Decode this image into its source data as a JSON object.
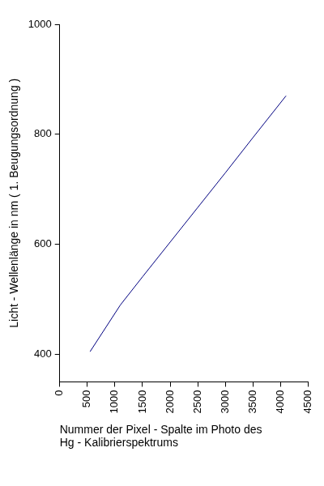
{
  "chart_data": {
    "type": "line",
    "x_label": [
      "Nummer der Pixel - Spalte im Photo des",
      "Hg - Kalibrierspektrums"
    ],
    "y_label": "Licht - Wellenlänge in nm ( 1. Beugungsordnung )",
    "x": [
      550,
      1100,
      1500,
      2000,
      2500,
      3000,
      3500,
      4100
    ],
    "values": [
      405,
      490,
      541,
      604,
      667,
      730,
      794,
      870
    ],
    "color": "#000080",
    "xlim": [
      0,
      4500
    ],
    "xticks": [
      0,
      500,
      1000,
      1500,
      2000,
      2500,
      3000,
      3500,
      4000,
      4500
    ],
    "ylim": [
      350,
      1000
    ],
    "yticks": [
      400,
      600,
      800,
      1000
    ],
    "grid": false
  }
}
